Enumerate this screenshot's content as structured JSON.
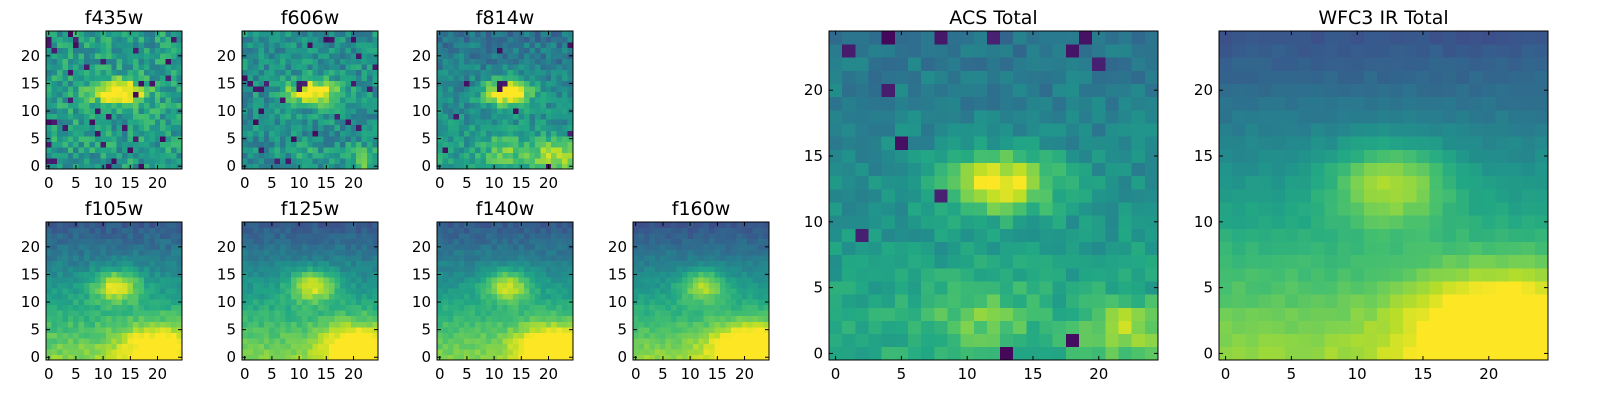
{
  "figure": {
    "colormap": "viridis"
  },
  "chart_data": [
    {
      "type": "heatmap",
      "title": "f435w",
      "grid": [
        25,
        25
      ],
      "xlim": [
        -0.5,
        24.5
      ],
      "ylim": [
        -0.5,
        24.5
      ],
      "xticks": [
        "0",
        "5",
        "10",
        "15",
        "20"
      ],
      "yticks": [
        "0",
        "5",
        "10",
        "15",
        "20"
      ],
      "noise": 0.3,
      "seed": 11,
      "features": [
        {
          "x": 13,
          "y": 13.5,
          "amp": 0.55,
          "sx": 3.5,
          "sy": 1.6
        }
      ],
      "gradient": [
        0.55,
        0.0,
        0.0
      ],
      "bad_pixels": 0.05
    },
    {
      "type": "heatmap",
      "title": "f606w",
      "grid": [
        25,
        25
      ],
      "xlim": [
        -0.5,
        24.5
      ],
      "ylim": [
        -0.5,
        24.5
      ],
      "xticks": [
        "0",
        "5",
        "10",
        "15",
        "20"
      ],
      "yticks": [
        "0",
        "5",
        "10",
        "15",
        "20"
      ],
      "noise": 0.27,
      "seed": 23,
      "features": [
        {
          "x": 12.5,
          "y": 13.5,
          "amp": 0.6,
          "sx": 3.2,
          "sy": 1.6
        },
        {
          "x": 22,
          "y": 1.5,
          "amp": 0.3,
          "sx": 2,
          "sy": 1.5
        },
        {
          "x": 11,
          "y": 3,
          "amp": 0.15,
          "sx": 2,
          "sy": 1.5
        }
      ],
      "gradient": [
        0.5,
        0.0,
        0.0
      ],
      "bad_pixels": 0.04
    },
    {
      "type": "heatmap",
      "title": "f814w",
      "grid": [
        25,
        25
      ],
      "xlim": [
        -0.5,
        24.5
      ],
      "ylim": [
        -0.5,
        24.5
      ],
      "xticks": [
        "0",
        "5",
        "10",
        "15",
        "20"
      ],
      "yticks": [
        "0",
        "5",
        "10",
        "15",
        "20"
      ],
      "noise": 0.22,
      "seed": 37,
      "features": [
        {
          "x": 12.5,
          "y": 13.5,
          "amp": 0.65,
          "sx": 3.0,
          "sy": 1.7
        },
        {
          "x": 21,
          "y": 2,
          "amp": 0.35,
          "sx": 3,
          "sy": 2
        },
        {
          "x": 12,
          "y": 3,
          "amp": 0.22,
          "sx": 2.5,
          "sy": 2
        }
      ],
      "gradient": [
        0.48,
        0.0,
        -0.008
      ],
      "bad_pixels": 0.02
    },
    {
      "type": "heatmap",
      "title": "f105w",
      "grid": [
        25,
        25
      ],
      "xlim": [
        -0.5,
        24.5
      ],
      "ylim": [
        -0.5,
        24.5
      ],
      "xticks": [
        "0",
        "5",
        "10",
        "15",
        "20"
      ],
      "yticks": [
        "0",
        "5",
        "10",
        "15",
        "20"
      ],
      "noise": 0.11,
      "seed": 41,
      "features": [
        {
          "x": 12.5,
          "y": 13,
          "amp": 0.45,
          "sx": 3.0,
          "sy": 2.0
        },
        {
          "x": 20,
          "y": 2,
          "amp": 0.35,
          "sx": 5,
          "sy": 3
        }
      ],
      "gradient": [
        0.55,
        0.0,
        -0.022
      ],
      "bad_pixels": 0
    },
    {
      "type": "heatmap",
      "title": "f125w",
      "grid": [
        25,
        25
      ],
      "xlim": [
        -0.5,
        24.5
      ],
      "ylim": [
        -0.5,
        24.5
      ],
      "xticks": [
        "0",
        "5",
        "10",
        "15",
        "20"
      ],
      "yticks": [
        "0",
        "5",
        "10",
        "15",
        "20"
      ],
      "noise": 0.1,
      "seed": 53,
      "features": [
        {
          "x": 12.5,
          "y": 13,
          "amp": 0.42,
          "sx": 3.0,
          "sy": 2.0
        },
        {
          "x": 21,
          "y": 2,
          "amp": 0.4,
          "sx": 5,
          "sy": 3
        }
      ],
      "gradient": [
        0.55,
        0.0,
        -0.022
      ],
      "bad_pixels": 0
    },
    {
      "type": "heatmap",
      "title": "f140w",
      "grid": [
        25,
        25
      ],
      "xlim": [
        -0.5,
        24.5
      ],
      "ylim": [
        -0.5,
        24.5
      ],
      "xticks": [
        "0",
        "5",
        "10",
        "15",
        "20"
      ],
      "yticks": [
        "0",
        "5",
        "10",
        "15",
        "20"
      ],
      "noise": 0.09,
      "seed": 67,
      "features": [
        {
          "x": 12.5,
          "y": 13,
          "amp": 0.4,
          "sx": 3.0,
          "sy": 2.0
        },
        {
          "x": 21,
          "y": 2,
          "amp": 0.42,
          "sx": 5,
          "sy": 3
        }
      ],
      "gradient": [
        0.55,
        0.0,
        -0.022
      ],
      "bad_pixels": 0
    },
    {
      "type": "heatmap",
      "title": "f160w",
      "grid": [
        25,
        25
      ],
      "xlim": [
        -0.5,
        24.5
      ],
      "ylim": [
        -0.5,
        24.5
      ],
      "xticks": [
        "0",
        "5",
        "10",
        "15",
        "20"
      ],
      "yticks": [
        "0",
        "5",
        "10",
        "15",
        "20"
      ],
      "noise": 0.08,
      "seed": 79,
      "features": [
        {
          "x": 12.5,
          "y": 13,
          "amp": 0.35,
          "sx": 3.0,
          "sy": 2.0
        },
        {
          "x": 21,
          "y": 2,
          "amp": 0.45,
          "sx": 5,
          "sy": 3
        }
      ],
      "gradient": [
        0.55,
        0.0,
        -0.024
      ],
      "bad_pixels": 0
    },
    {
      "type": "heatmap",
      "title": "ACS Total",
      "grid": [
        25,
        25
      ],
      "xlim": [
        -0.5,
        24.5
      ],
      "ylim": [
        -0.5,
        24.5
      ],
      "xticks": [
        "0",
        "5",
        "10",
        "15",
        "20"
      ],
      "yticks": [
        "0",
        "5",
        "10",
        "15",
        "20"
      ],
      "noise": 0.14,
      "seed": 97,
      "features": [
        {
          "x": 12.5,
          "y": 13,
          "amp": 0.5,
          "sx": 3.2,
          "sy": 1.6
        },
        {
          "x": 22,
          "y": 2,
          "amp": 0.3,
          "sx": 2,
          "sy": 1.5
        },
        {
          "x": 11,
          "y": 3,
          "amp": 0.18,
          "sx": 3,
          "sy": 2
        }
      ],
      "gradient": [
        0.5,
        0.0,
        -0.01
      ],
      "bad_pixels": 0.02
    },
    {
      "type": "heatmap",
      "title": "WFC3 IR Total",
      "grid": [
        25,
        25
      ],
      "xlim": [
        -0.5,
        24.5
      ],
      "ylim": [
        -0.5,
        24.5
      ],
      "xticks": [
        "0",
        "5",
        "10",
        "15",
        "20"
      ],
      "yticks": [
        "0",
        "5",
        "10",
        "15",
        "20"
      ],
      "noise": 0.045,
      "seed": 113,
      "features": [
        {
          "x": 12.5,
          "y": 13,
          "amp": 0.35,
          "sx": 3.2,
          "sy": 2.2
        },
        {
          "x": 21,
          "y": 2,
          "amp": 0.45,
          "sx": 5,
          "sy": 3
        }
      ],
      "gradient": [
        0.55,
        0.0,
        -0.024
      ],
      "bad_pixels": 0
    }
  ]
}
